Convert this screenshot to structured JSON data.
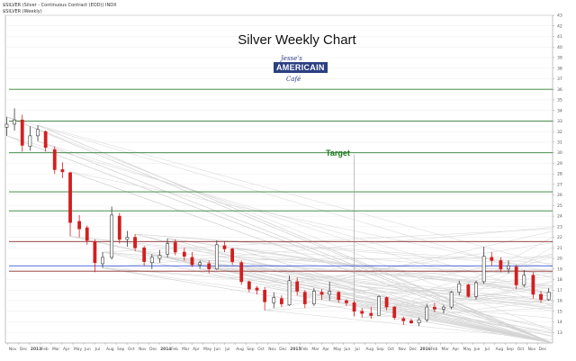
{
  "header": {
    "line1": "$SILVER (Silver - Continuous Contract (EOD)) INDX",
    "line2": "$SILVER (Weekly)"
  },
  "logo": {
    "line1": "Jesse's",
    "line2": "AMERICAIN",
    "line3": "Café"
  },
  "chart_data": {
    "type": "candlestick",
    "title": "Silver Weekly Chart",
    "annotation": "Target",
    "y_axis": {
      "side": "right",
      "range": [
        12,
        43
      ],
      "ticks": [
        13,
        14,
        15,
        16,
        17,
        18,
        19,
        20,
        21,
        22,
        23,
        24,
        25,
        26,
        27,
        28,
        29,
        30,
        31,
        32,
        33,
        34,
        35,
        36,
        37,
        38,
        39,
        40,
        41,
        42,
        43
      ]
    },
    "x_axis": {
      "range": [
        2012.83,
        2017.05
      ],
      "tick_labels": [
        "Nov",
        "Dec",
        "2013",
        "Feb",
        "Mar",
        "Apr",
        "May",
        "Jun",
        "Jul",
        "Aug",
        "Sep",
        "Oct",
        "Nov",
        "Dec",
        "2014",
        "Feb",
        "Mar",
        "Apr",
        "May",
        "Jun",
        "Jul",
        "Aug",
        "Sep",
        "Oct",
        "Nov",
        "Dec",
        "2015",
        "Feb",
        "Mar",
        "Apr",
        "May",
        "Jun",
        "Jul",
        "Aug",
        "Sep",
        "Oct",
        "Nov",
        "Dec",
        "2016",
        "Feb",
        "Mar",
        "Apr",
        "May",
        "Jun",
        "Jul",
        "Aug",
        "Sep",
        "Oct",
        "Nov",
        "Dec"
      ]
    },
    "horizontal_levels": [
      {
        "value": 36.0,
        "color": "#2e7d32"
      },
      {
        "value": 33.0,
        "color": "#2e7d32"
      },
      {
        "value": 30.0,
        "color": "#2e7d32"
      },
      {
        "value": 26.3,
        "color": "#2e7d32"
      },
      {
        "value": 24.5,
        "color": "#2e7d32"
      },
      {
        "value": 21.6,
        "color": "#8b2a2a"
      },
      {
        "value": 19.3,
        "color": "#3b5bdb"
      },
      {
        "value": 18.8,
        "color": "#8b2a2a"
      }
    ],
    "target_level": 30.0,
    "series": [
      {
        "name": "Silver",
        "ohlc": [
          [
            2012.84,
            32.4,
            33.4,
            31.6,
            32.7
          ],
          [
            2012.9,
            32.7,
            34.2,
            32.1,
            33.1
          ],
          [
            2012.96,
            33.1,
            33.6,
            30.1,
            30.7
          ],
          [
            2013.02,
            30.6,
            32.5,
            30.2,
            31.6
          ],
          [
            2013.08,
            31.6,
            32.6,
            31.1,
            32.2
          ],
          [
            2013.14,
            32.0,
            32.1,
            30.1,
            30.5
          ],
          [
            2013.21,
            30.3,
            30.6,
            28.0,
            28.4
          ],
          [
            2013.27,
            28.4,
            29.1,
            27.6,
            28.2
          ],
          [
            2013.33,
            28.1,
            28.2,
            22.1,
            23.4
          ],
          [
            2013.4,
            23.5,
            24.1,
            22.0,
            22.8
          ],
          [
            2013.46,
            22.9,
            23.1,
            21.3,
            21.7
          ],
          [
            2013.52,
            21.6,
            21.8,
            18.7,
            19.6
          ],
          [
            2013.58,
            19.5,
            20.6,
            19.1,
            20.1
          ],
          [
            2013.65,
            20.1,
            24.9,
            19.9,
            24.1
          ],
          [
            2013.71,
            24.0,
            24.3,
            21.4,
            21.8
          ],
          [
            2013.77,
            21.8,
            22.6,
            21.1,
            22.0
          ],
          [
            2013.83,
            22.0,
            22.3,
            20.7,
            21.0
          ],
          [
            2013.9,
            21.0,
            21.2,
            19.3,
            19.7
          ],
          [
            2013.96,
            19.6,
            20.4,
            19.0,
            20.1
          ],
          [
            2014.02,
            20.0,
            20.8,
            19.6,
            20.3
          ],
          [
            2014.08,
            20.4,
            21.9,
            20.1,
            21.4
          ],
          [
            2014.14,
            21.5,
            21.8,
            20.3,
            20.6
          ],
          [
            2014.21,
            20.6,
            21.0,
            19.8,
            20.2
          ],
          [
            2014.27,
            20.1,
            20.6,
            19.2,
            19.4
          ],
          [
            2014.33,
            19.4,
            19.8,
            19.0,
            19.6
          ],
          [
            2014.4,
            19.5,
            19.8,
            18.6,
            19.0
          ],
          [
            2014.46,
            19.0,
            21.7,
            18.9,
            21.3
          ],
          [
            2014.52,
            21.2,
            21.6,
            20.6,
            20.9
          ],
          [
            2014.58,
            20.9,
            21.0,
            19.4,
            19.7
          ],
          [
            2014.65,
            19.6,
            19.8,
            17.5,
            17.8
          ],
          [
            2014.71,
            17.8,
            17.9,
            16.8,
            17.1
          ],
          [
            2014.77,
            17.2,
            17.4,
            16.6,
            17.0
          ],
          [
            2014.83,
            17.0,
            17.3,
            15.1,
            15.9
          ],
          [
            2014.9,
            15.8,
            16.8,
            15.3,
            16.3
          ],
          [
            2014.96,
            16.2,
            16.5,
            15.4,
            15.7
          ],
          [
            2015.02,
            15.6,
            18.4,
            15.5,
            17.9
          ],
          [
            2015.08,
            17.8,
            18.2,
            16.5,
            16.9
          ],
          [
            2015.14,
            16.8,
            17.0,
            15.3,
            15.7
          ],
          [
            2015.21,
            15.7,
            17.2,
            15.5,
            16.9
          ],
          [
            2015.27,
            16.8,
            17.1,
            16.1,
            16.6
          ],
          [
            2015.33,
            16.6,
            17.8,
            16.0,
            16.9
          ],
          [
            2015.4,
            16.8,
            16.9,
            15.8,
            16.1
          ],
          [
            2015.46,
            16.0,
            16.1,
            15.5,
            15.8
          ],
          [
            2015.52,
            15.8,
            16.0,
            14.5,
            15.0
          ],
          [
            2015.58,
            15.0,
            15.3,
            14.4,
            14.8
          ],
          [
            2015.65,
            14.8,
            15.4,
            14.3,
            14.6
          ],
          [
            2015.71,
            14.6,
            16.5,
            14.6,
            16.4
          ],
          [
            2015.77,
            16.3,
            16.4,
            15.1,
            15.4
          ],
          [
            2015.83,
            15.4,
            15.5,
            14.2,
            14.4
          ],
          [
            2015.9,
            14.3,
            14.5,
            13.7,
            14.1
          ],
          [
            2015.96,
            14.1,
            14.3,
            13.8,
            13.9
          ],
          [
            2016.02,
            13.9,
            14.4,
            13.6,
            14.2
          ],
          [
            2016.08,
            14.2,
            15.7,
            14.0,
            15.4
          ],
          [
            2016.14,
            15.4,
            15.8,
            14.9,
            15.2
          ],
          [
            2016.21,
            15.2,
            15.6,
            14.8,
            15.4
          ],
          [
            2016.27,
            15.4,
            16.9,
            15.2,
            16.8
          ],
          [
            2016.33,
            16.8,
            17.9,
            16.5,
            17.6
          ],
          [
            2016.4,
            17.5,
            17.6,
            16.3,
            16.4
          ],
          [
            2016.46,
            16.4,
            17.9,
            16.1,
            17.7
          ],
          [
            2016.52,
            17.8,
            21.1,
            17.6,
            20.2
          ],
          [
            2016.58,
            20.1,
            20.6,
            19.3,
            19.8
          ],
          [
            2016.65,
            19.8,
            20.1,
            18.7,
            19.0
          ],
          [
            2016.71,
            19.0,
            19.8,
            18.6,
            19.3
          ],
          [
            2016.77,
            19.2,
            19.4,
            17.1,
            17.5
          ],
          [
            2016.83,
            17.5,
            18.9,
            17.3,
            18.4
          ],
          [
            2016.9,
            18.4,
            18.7,
            16.2,
            16.6
          ],
          [
            2016.96,
            16.6,
            16.9,
            15.8,
            16.1
          ],
          [
            2017.02,
            16.1,
            17.2,
            16.0,
            16.8
          ]
        ]
      }
    ]
  }
}
